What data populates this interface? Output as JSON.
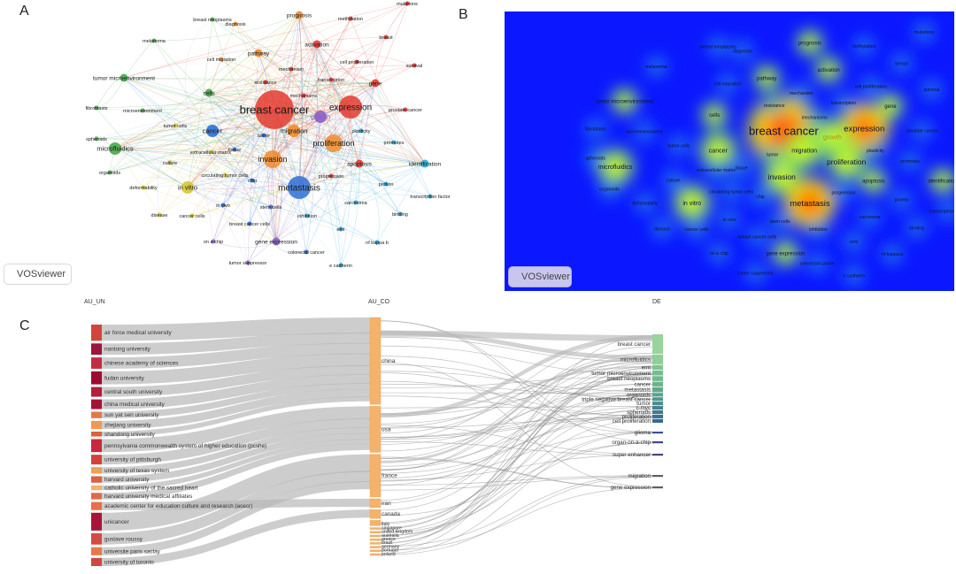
{
  "panels": {
    "a": "A",
    "b": "B",
    "c": "C"
  },
  "badge": {
    "label": "VOSviewer",
    "icon": "vosviewer-logo-icon"
  },
  "network": {
    "nodes": [
      {
        "id": "breast cancer",
        "cluster": "red",
        "weight": 10
      },
      {
        "id": "expression",
        "cluster": "red",
        "weight": 6
      },
      {
        "id": "growth",
        "cluster": "purple",
        "weight": 3
      },
      {
        "id": "proliferation",
        "cluster": "orange",
        "weight": 5
      },
      {
        "id": "invasion",
        "cluster": "orange",
        "weight": 5
      },
      {
        "id": "metastasis",
        "cluster": "blue",
        "weight": 6
      },
      {
        "id": "cancer",
        "cluster": "blue",
        "weight": 3
      },
      {
        "id": "cells",
        "cluster": "green",
        "weight": 2
      },
      {
        "id": "migration",
        "cluster": "orange",
        "weight": 3
      },
      {
        "id": "microfluidics",
        "cluster": "green",
        "weight": 3
      },
      {
        "id": "in vitro",
        "cluster": "yellow",
        "weight": 3
      },
      {
        "id": "apoptosis",
        "cluster": "red",
        "weight": 2
      },
      {
        "id": "identification",
        "cluster": "cyan",
        "weight": 2
      },
      {
        "id": "tumor microenvironment",
        "cluster": "green",
        "weight": 2
      },
      {
        "id": "gene",
        "cluster": "red",
        "weight": 2
      },
      {
        "id": "activation",
        "cluster": "red",
        "weight": 2
      },
      {
        "id": "pathway",
        "cluster": "orange",
        "weight": 2
      },
      {
        "id": "prognosis",
        "cluster": "orange",
        "weight": 2
      },
      {
        "id": "breast neoplasms",
        "cluster": "green",
        "weight": 1
      },
      {
        "id": "diagnosis",
        "cluster": "orange",
        "weight": 1
      },
      {
        "id": "methylation",
        "cluster": "red",
        "weight": 1
      },
      {
        "id": "mutations",
        "cluster": "red",
        "weight": 1
      },
      {
        "id": "breast",
        "cluster": "red",
        "weight": 1
      },
      {
        "id": "melanoma",
        "cluster": "green",
        "weight": 1
      },
      {
        "id": "cell migration",
        "cluster": "orange",
        "weight": 1
      },
      {
        "id": "cell proliferation",
        "cluster": "red",
        "weight": 1
      },
      {
        "id": "survival",
        "cluster": "red",
        "weight": 1
      },
      {
        "id": "mechanism",
        "cluster": "red",
        "weight": 1
      },
      {
        "id": "resistance",
        "cluster": "red",
        "weight": 1
      },
      {
        "id": "transcription",
        "cluster": "red",
        "weight": 1
      },
      {
        "id": "mechanisms",
        "cluster": "red",
        "weight": 1
      },
      {
        "id": "fibroblasts",
        "cluster": "green",
        "weight": 1
      },
      {
        "id": "microenvironment",
        "cluster": "green",
        "weight": 1
      },
      {
        "id": "prostate cancer",
        "cluster": "red",
        "weight": 1
      },
      {
        "id": "tumor cells",
        "cluster": "yellow",
        "weight": 1
      },
      {
        "id": "spheroids",
        "cluster": "green",
        "weight": 1
      },
      {
        "id": "tumor",
        "cluster": "blue",
        "weight": 1
      },
      {
        "id": "plasticity",
        "cluster": "cyan",
        "weight": 1
      },
      {
        "id": "promotes",
        "cluster": "cyan",
        "weight": 1
      },
      {
        "id": "extracellular matrix",
        "cluster": "yellow",
        "weight": 1
      },
      {
        "id": "tissue",
        "cluster": "blue",
        "weight": 1
      },
      {
        "id": "culture",
        "cluster": "yellow",
        "weight": 1
      },
      {
        "id": "organoids",
        "cluster": "green",
        "weight": 1
      },
      {
        "id": "circulating tumor cells",
        "cluster": "yellow",
        "weight": 1
      },
      {
        "id": "chip",
        "cluster": "blue",
        "weight": 1
      },
      {
        "id": "progression",
        "cluster": "red",
        "weight": 1
      },
      {
        "id": "protein",
        "cluster": "cyan",
        "weight": 1
      },
      {
        "id": "deformability",
        "cluster": "yellow",
        "weight": 1
      },
      {
        "id": "transcription factor",
        "cluster": "cyan",
        "weight": 1
      },
      {
        "id": "in vivo",
        "cluster": "blue",
        "weight": 1
      },
      {
        "id": "stem cells",
        "cluster": "blue",
        "weight": 1
      },
      {
        "id": "carcinoma",
        "cluster": "cyan",
        "weight": 1
      },
      {
        "id": "disease",
        "cluster": "yellow",
        "weight": 1
      },
      {
        "id": "cancer cells",
        "cluster": "yellow",
        "weight": 1
      },
      {
        "id": "inhibition",
        "cluster": "cyan",
        "weight": 1
      },
      {
        "id": "binding",
        "cluster": "cyan",
        "weight": 1
      },
      {
        "id": "breast cancer cells",
        "cluster": "blue",
        "weight": 1
      },
      {
        "id": "emt",
        "cluster": "cyan",
        "weight": 1
      },
      {
        "id": "gene expression",
        "cluster": "purple",
        "weight": 2
      },
      {
        "id": "nf kappa b",
        "cluster": "cyan",
        "weight": 1
      },
      {
        "id": "on a chip",
        "cluster": "purple",
        "weight": 1
      },
      {
        "id": "colorectal cancer",
        "cluster": "blue",
        "weight": 1
      },
      {
        "id": "tumor suppressor",
        "cluster": "purple",
        "weight": 1
      },
      {
        "id": "e cadherin",
        "cluster": "cyan",
        "weight": 1
      }
    ]
  },
  "density": {
    "labels": [
      "breast cancer",
      "expression",
      "growth",
      "proliferation",
      "invasion",
      "metastasis",
      "cancer",
      "cells",
      "migration",
      "microfluidics",
      "in vitro",
      "apoptosis",
      "identification",
      "tumor microenvironment",
      "gene",
      "activation",
      "pathway",
      "prognosis",
      "breast neoplasms",
      "diagnosis",
      "methylation",
      "mutations",
      "breast",
      "melanoma",
      "cell migration",
      "cell proliferation",
      "survival",
      "mechanism",
      "resistance",
      "transcription",
      "mechanisms",
      "fibroblasts",
      "microenvironment",
      "prostate cancer",
      "tumor cells",
      "spheroids",
      "tumor",
      "plasticity",
      "promotes",
      "extracellular matrix",
      "tissue",
      "culture",
      "organoids",
      "circulating tumor cells",
      "chip",
      "progression",
      "protein",
      "deformability",
      "transcription factor",
      "in vivo",
      "stem cells",
      "carcinoma",
      "disease",
      "cancer cells",
      "inhibition",
      "binding",
      "breast cancer cells",
      "emt",
      "gene expression",
      "nf kappa b",
      "on a chip",
      "colorectal cancer",
      "tumor suppressor",
      "e cadherin"
    ]
  },
  "sankey": {
    "headers": {
      "left": "AU_UN",
      "mid": "AU_CO",
      "right": "DE"
    },
    "left": [
      {
        "name": "air force medical university",
        "color": "#d2453b",
        "w": 20
      },
      {
        "name": "nantong university",
        "color": "#a0143a",
        "w": 14
      },
      {
        "name": "chinese academy of sciences",
        "color": "#c22d43",
        "w": 14
      },
      {
        "name": "fudan university",
        "color": "#9c0c2e",
        "w": 16
      },
      {
        "name": "central south university",
        "color": "#b41d3c",
        "w": 12
      },
      {
        "name": "china medical university",
        "color": "#a41238",
        "w": 12
      },
      {
        "name": "sun yat sen university",
        "color": "#e07a45",
        "w": 8
      },
      {
        "name": "zhejiang university",
        "color": "#ee9a52",
        "w": 10
      },
      {
        "name": "shandong university",
        "color": "#d9623e",
        "w": 6
      },
      {
        "name": "pennsylvania commonwealth system of higher education (pcshe)",
        "color": "#c8283f",
        "w": 16
      },
      {
        "name": "university of pittsburgh",
        "color": "#d4413c",
        "w": 12
      },
      {
        "name": "university of texas system",
        "color": "#ef9f57",
        "w": 8
      },
      {
        "name": "harvard university",
        "color": "#dd5f45",
        "w": 8
      },
      {
        "name": "catholic university of the sacred heart",
        "color": "#f3b16a",
        "w": 6
      },
      {
        "name": "harvard university medical affiliates",
        "color": "#e06a48",
        "w": 8
      },
      {
        "name": "academic center for education culture and research (acecr)",
        "color": "#e86f4a",
        "w": 10
      },
      {
        "name": "unicancer",
        "color": "#a9153a",
        "w": 22
      },
      {
        "name": "gustave roussy",
        "color": "#d24b44",
        "w": 14
      },
      {
        "name": "universite paris saclay",
        "color": "#e8794a",
        "w": 10
      },
      {
        "name": "university of toronto",
        "color": "#cf4740",
        "w": 10
      }
    ],
    "mid": [
      {
        "name": "china",
        "w": 98
      },
      {
        "name": "usa",
        "w": 52
      },
      {
        "name": "france",
        "w": 48
      },
      {
        "name": "iran",
        "w": 10
      },
      {
        "name": "canada",
        "w": 10
      },
      {
        "name": "italy",
        "w": 6
      },
      {
        "name": "singapore",
        "w": 2
      },
      {
        "name": "united kingdom",
        "w": 2
      },
      {
        "name": "australia",
        "w": 2
      },
      {
        "name": "greece",
        "w": 2
      },
      {
        "name": "brazil",
        "w": 2
      },
      {
        "name": "germany",
        "w": 2
      },
      {
        "name": "portugal",
        "w": 2
      },
      {
        "name": "poland",
        "w": 2
      }
    ],
    "right": [
      {
        "name": "breast cancer",
        "color": "#98d49e",
        "w": 16
      },
      {
        "name": "microfluidics",
        "color": "#8ccf98",
        "w": 8
      },
      {
        "name": "emt",
        "color": "#7ec592",
        "w": 4
      },
      {
        "name": "tumor microenvironment",
        "color": "#74be90",
        "w": 4
      },
      {
        "name": "breast neoplasms",
        "color": "#70b98c",
        "w": 4
      },
      {
        "name": "cancer",
        "color": "#6ab48a",
        "w": 4
      },
      {
        "name": "metastasis",
        "color": "#5eab8a",
        "w": 4
      },
      {
        "name": "organoids",
        "color": "#56a28a",
        "w": 3
      },
      {
        "name": "triple negative breast cancer",
        "color": "#4f9a8c",
        "w": 3
      },
      {
        "name": "tumor",
        "color": "#4a8e8e",
        "w": 3
      },
      {
        "name": "c-myc",
        "color": "#44838f",
        "w": 3
      },
      {
        "name": "spheroids",
        "color": "#3f7a90",
        "w": 3
      },
      {
        "name": "proliferation",
        "color": "#3b7192",
        "w": 3
      },
      {
        "name": "cell proliferation",
        "color": "#386994",
        "w": 3
      },
      {
        "name": "glioma",
        "color": "#3f4f8e",
        "w": 2
      },
      {
        "name": "organ-on-a-chip",
        "color": "#44468a",
        "w": 2
      },
      {
        "name": "super enhancer",
        "color": "#474088",
        "w": 2
      },
      {
        "name": "migration",
        "color": "#5c5f68",
        "w": 1
      },
      {
        "name": "gene expression",
        "color": "#5c5f68",
        "w": 1
      }
    ]
  }
}
